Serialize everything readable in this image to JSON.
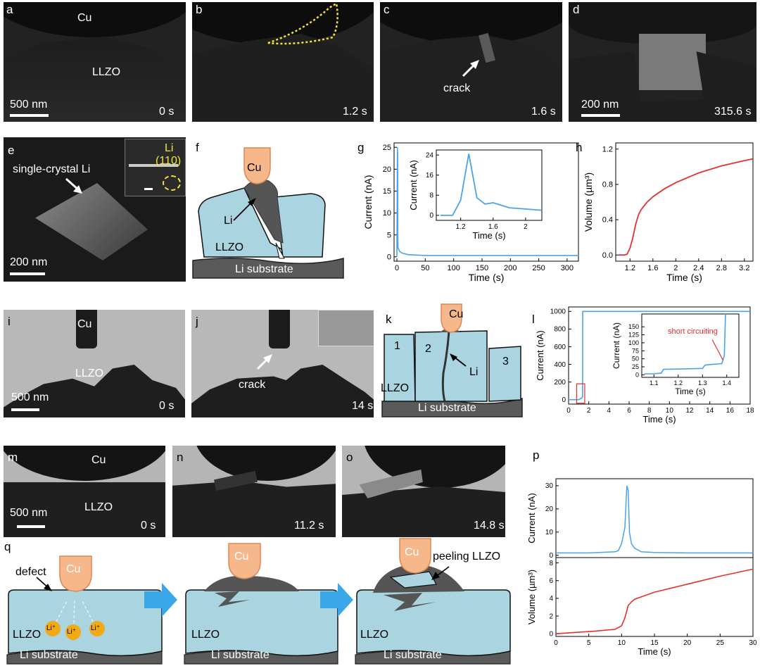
{
  "panels": {
    "a": {
      "label": "a",
      "cu": "Cu",
      "llzo": "LLZO",
      "scale": "500 nm",
      "time": "0 s"
    },
    "b": {
      "label": "b",
      "time": "1.2 s"
    },
    "c": {
      "label": "c",
      "note": "crack",
      "time": "1.6 s"
    },
    "d": {
      "label": "d",
      "scale": "200 nm",
      "time": "315.6 s"
    },
    "e": {
      "label": "e",
      "note": "single-crystal Li",
      "scale": "200 nm",
      "inset_li": "Li",
      "inset_plane": "(110)"
    },
    "f": {
      "label": "f",
      "cu": "Cu",
      "li": "Li",
      "llzo": "LLZO",
      "substrate": "Li substrate"
    },
    "g": {
      "label": "g"
    },
    "h": {
      "label": "h"
    },
    "i": {
      "label": "i",
      "cu": "Cu",
      "llzo": "LLZO",
      "scale": "500 nm",
      "time": "0 s"
    },
    "j": {
      "label": "j",
      "note": "crack",
      "time": "14 s"
    },
    "k": {
      "label": "k",
      "cu": "Cu",
      "li": "Li",
      "llzo": "LLZO",
      "substrate": "Li substrate",
      "g1": "1",
      "g2": "2",
      "g3": "3"
    },
    "l": {
      "label": "l"
    },
    "m": {
      "label": "m",
      "cu": "Cu",
      "llzo": "LLZO",
      "scale": "500 nm",
      "time": "0 s"
    },
    "n": {
      "label": "n",
      "time": "11.2 s"
    },
    "o": {
      "label": "o",
      "time": "14.8 s"
    },
    "p": {
      "label": "p"
    },
    "q": {
      "label": "q",
      "defect": "defect",
      "cu": "Cu",
      "liplus": "Li⁺",
      "llzo": "LLZO",
      "substrate": "Li substrate",
      "peeling": "peeling LLZO"
    }
  },
  "chart_data": [
    {
      "id": "g",
      "type": "line",
      "xlabel": "Time (s)",
      "ylabel": "Current (nA)",
      "xlim": [
        -5,
        320
      ],
      "ylim": [
        -1,
        26
      ],
      "xticks": [
        0,
        50,
        100,
        150,
        200,
        250,
        300
      ],
      "yticks": [
        0,
        5,
        10,
        15,
        20,
        25
      ],
      "series": [
        {
          "color": "#4aa3e8",
          "x": [
            0,
            1,
            1.2,
            1.3,
            1.5,
            1.6,
            2,
            5,
            10,
            20,
            50,
            100,
            150,
            200,
            250,
            300,
            320
          ],
          "y": [
            0,
            25,
            18,
            24,
            6,
            5,
            2,
            1.2,
            0.8,
            0.5,
            0.3,
            0.3,
            0.3,
            0.3,
            0.3,
            0.3,
            0.3
          ]
        }
      ],
      "inset": {
        "xlabel": "Time (s)",
        "ylabel": "Current (nA)",
        "xlim": [
          0.9,
          2.2
        ],
        "ylim": [
          -2,
          26
        ],
        "xticks": [
          1.2,
          1.6,
          2.0
        ],
        "yticks": [
          0,
          8,
          16,
          24
        ],
        "x": [
          0.95,
          1.1,
          1.2,
          1.3,
          1.4,
          1.5,
          1.6,
          1.8,
          2.0,
          2.2
        ],
        "y": [
          0,
          0,
          6,
          24.5,
          7,
          4.5,
          5,
          3,
          2.5,
          2
        ]
      }
    },
    {
      "id": "h",
      "type": "line",
      "xlabel": "Time (s)",
      "ylabel": "Volume (µm³)",
      "xlim": [
        0.95,
        3.35
      ],
      "ylim": [
        -0.07,
        1.27
      ],
      "xticks": [
        1.2,
        1.6,
        2.0,
        2.4,
        2.8,
        3.2
      ],
      "yticks": [
        0.0,
        0.4,
        0.8,
        1.2
      ],
      "series": [
        {
          "color": "#e53030",
          "x": [
            1.0,
            1.1,
            1.15,
            1.2,
            1.25,
            1.3,
            1.35,
            1.4,
            1.5,
            1.6,
            1.8,
            2.0,
            2.4,
            2.8,
            3.2,
            3.35
          ],
          "y": [
            0,
            0,
            0.01,
            0.08,
            0.2,
            0.35,
            0.46,
            0.52,
            0.6,
            0.66,
            0.75,
            0.82,
            0.93,
            1.01,
            1.07,
            1.09
          ]
        }
      ]
    },
    {
      "id": "l",
      "type": "line",
      "xlabel": "Time (s)",
      "ylabel": "Current (nA)",
      "xlim": [
        0,
        18
      ],
      "ylim": [
        -50,
        1050
      ],
      "xticks": [
        0,
        2,
        4,
        6,
        8,
        10,
        12,
        14,
        16,
        18
      ],
      "yticks": [
        0,
        200,
        400,
        600,
        800,
        1000
      ],
      "series": [
        {
          "color": "#4aa3e8",
          "x": [
            0,
            1.0,
            1.1,
            1.2,
            1.3,
            1.35,
            1.38,
            1.39,
            1.4,
            1.5,
            18
          ],
          "y": [
            0,
            0,
            5,
            15,
            18,
            30,
            33,
            60,
            1000,
            1000,
            1000
          ]
        }
      ],
      "inset": {
        "xlabel": "Time (s)",
        "ylabel": "Current (nA)",
        "annotation": "short circuiting",
        "xlim": [
          1.05,
          1.45
        ],
        "ylim": [
          -8,
          190
        ],
        "xticks": [
          1.1,
          1.2,
          1.3,
          1.4
        ],
        "yticks": [
          0,
          25,
          50,
          75,
          100,
          125,
          150
        ],
        "x": [
          1.06,
          1.1,
          1.13,
          1.14,
          1.2,
          1.3,
          1.31,
          1.33,
          1.38,
          1.39,
          1.395
        ],
        "y": [
          3,
          3,
          5,
          17,
          18,
          20,
          30,
          32,
          35,
          60,
          190
        ]
      }
    },
    {
      "id": "p_current",
      "type": "line",
      "xlabel": "",
      "ylabel": "Current (nA)",
      "xlim": [
        0,
        30
      ],
      "ylim": [
        -1,
        33
      ],
      "yticks": [
        0,
        10,
        20,
        30
      ],
      "series": [
        {
          "color": "#4aa3e8",
          "x": [
            0,
            5,
            9,
            9.5,
            10,
            10.5,
            10.8,
            11,
            11.2,
            11.5,
            12,
            13,
            15,
            20,
            25,
            30
          ],
          "y": [
            1,
            1,
            1.5,
            2,
            5,
            12,
            30,
            28,
            10,
            5,
            3,
            1.5,
            1.2,
            1,
            1,
            1
          ]
        }
      ]
    },
    {
      "id": "p_volume",
      "type": "line",
      "xlabel": "Time (s)",
      "ylabel": "Volume (µm³)",
      "xlim": [
        0,
        30
      ],
      "ylim": [
        -0.3,
        8.6
      ],
      "xticks": [
        0,
        5,
        10,
        15,
        20,
        25,
        30
      ],
      "yticks": [
        0,
        2,
        4,
        6,
        8
      ],
      "series": [
        {
          "color": "#e53030",
          "x": [
            0,
            3,
            6,
            9,
            10,
            10.5,
            11,
            11.5,
            12,
            15,
            20,
            25,
            30
          ],
          "y": [
            0,
            0.15,
            0.3,
            0.5,
            0.9,
            1.8,
            3.2,
            3.6,
            3.9,
            4.7,
            5.6,
            6.5,
            7.3
          ]
        }
      ]
    }
  ]
}
